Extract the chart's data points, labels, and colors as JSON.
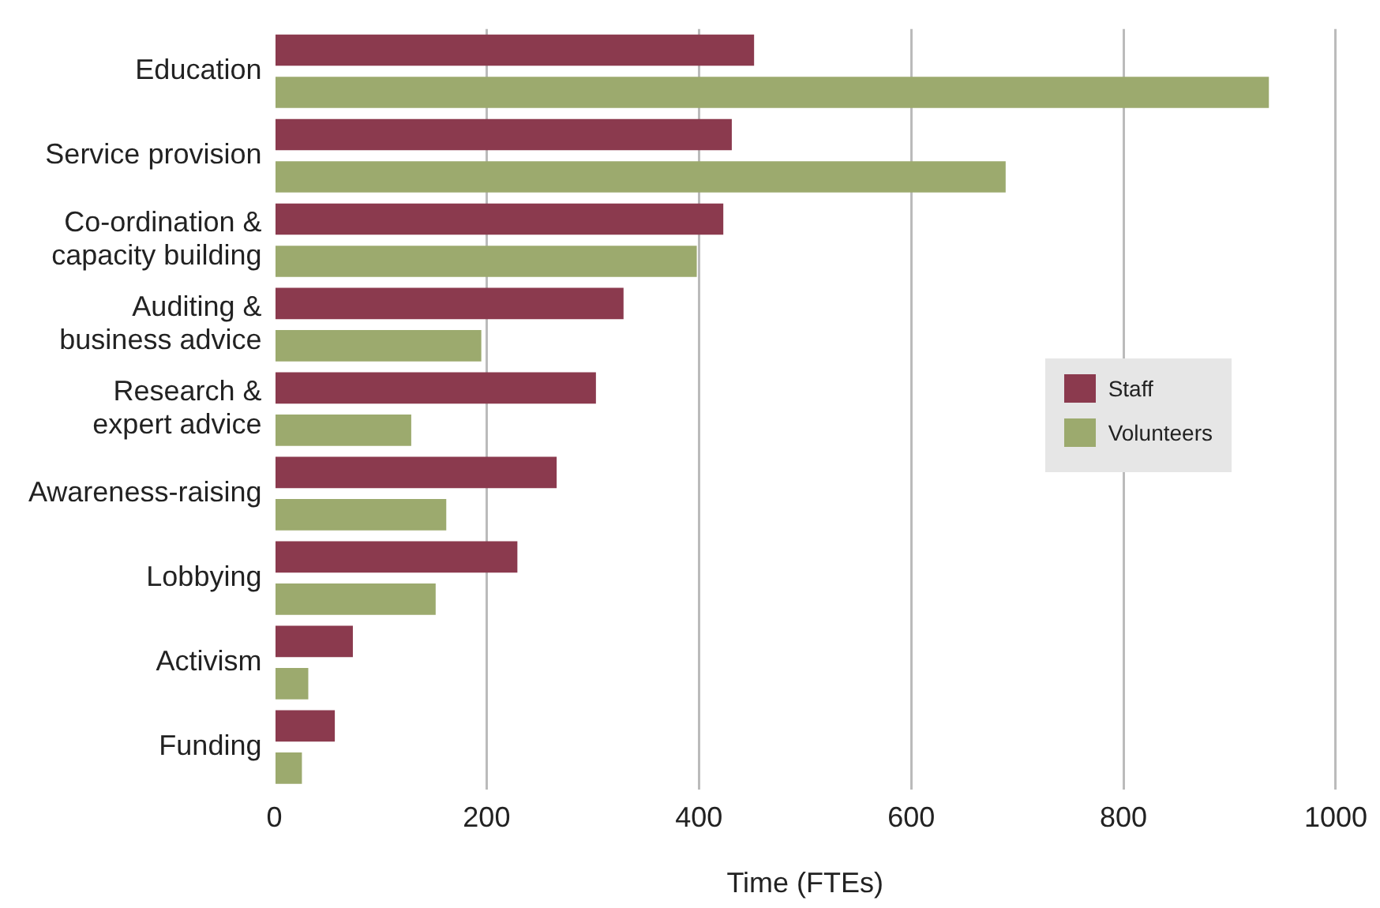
{
  "chart_data": {
    "type": "bar",
    "orientation": "horizontal",
    "xlabel": "Time (FTEs)",
    "categories": [
      "Education",
      "Service provision",
      "Co-ordination &\ncapacity building",
      "Auditing &\nbusiness advice",
      "Research &\nexpert advice",
      "Awareness-raising",
      "Lobbying",
      "Activism",
      "Funding"
    ],
    "series": [
      {
        "name": "Staff",
        "color": "#8b3a4e",
        "values": [
          452,
          431,
          423,
          329,
          303,
          266,
          229,
          74,
          57
        ]
      },
      {
        "name": "Volunteers",
        "color": "#9caa6e",
        "values": [
          937,
          689,
          398,
          195,
          129,
          162,
          152,
          32,
          26
        ]
      }
    ],
    "xlim": [
      0,
      1000
    ],
    "xticks": [
      0,
      200,
      400,
      600,
      800,
      1000
    ],
    "grid": "x",
    "legend": "right"
  }
}
